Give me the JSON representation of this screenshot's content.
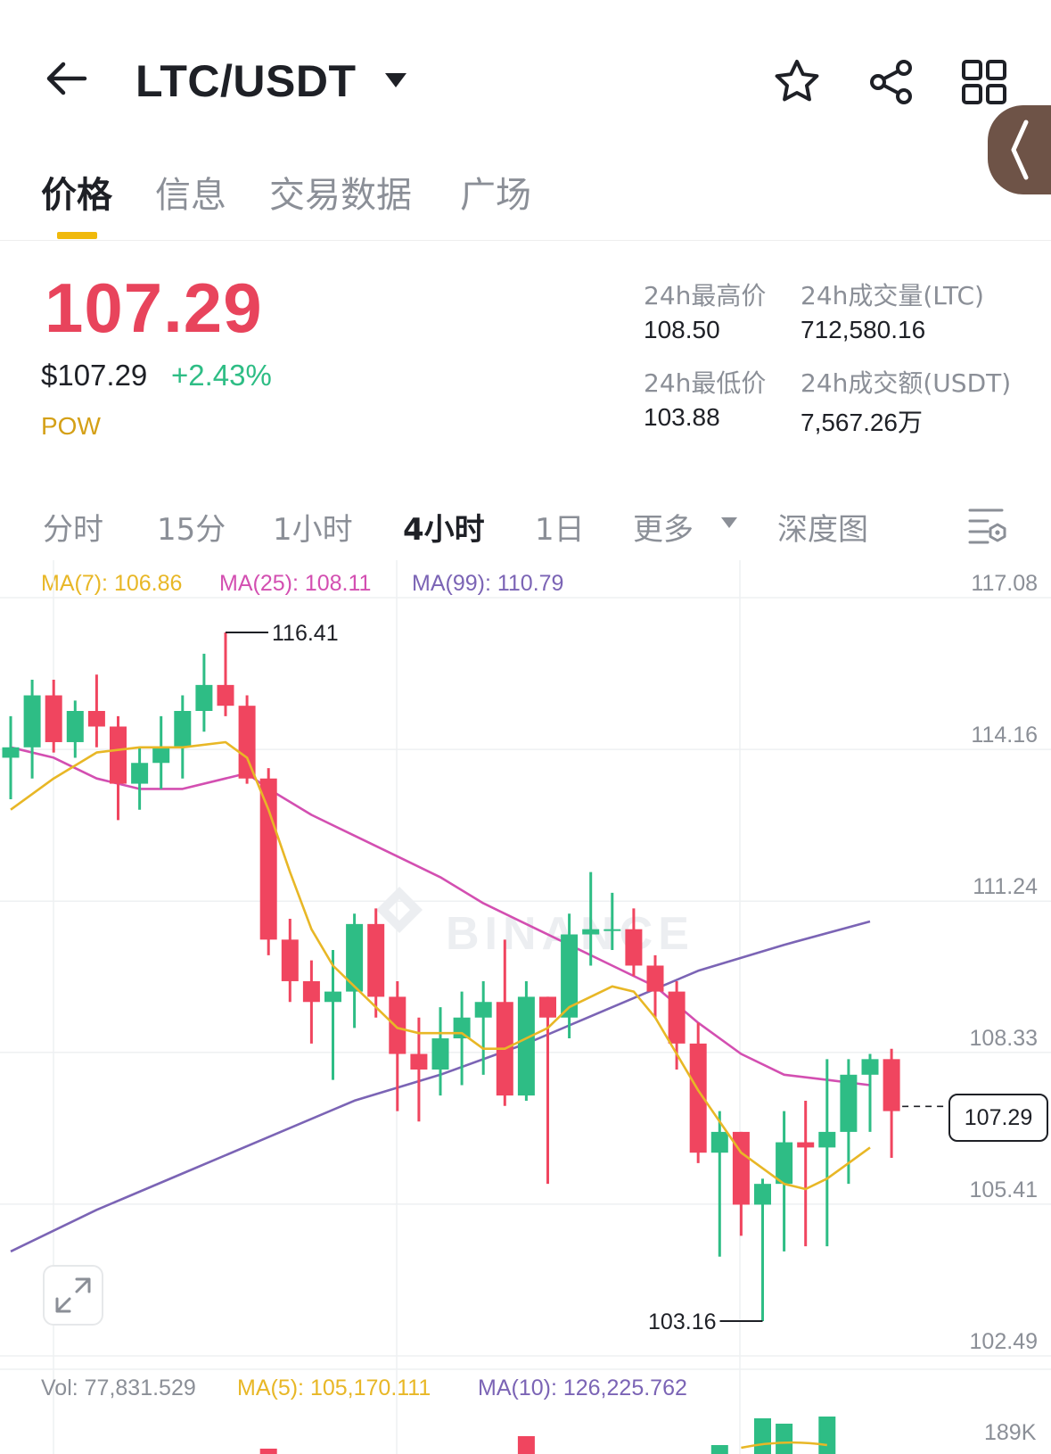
{
  "header": {
    "pair": "LTC/USDT"
  },
  "tabs": [
    {
      "label": "价格",
      "active": true
    },
    {
      "label": "信息",
      "active": false
    },
    {
      "label": "交易数据",
      "active": false
    },
    {
      "label": "广场",
      "active": false
    }
  ],
  "ticker": {
    "last_price": "107.29",
    "usd_price": "$107.29",
    "change": "+2.43%",
    "tag": "POW",
    "high_label": "24h最高价",
    "high_value": "108.50",
    "low_label": "24h最低价",
    "low_value": "103.88",
    "vol_label": "24h成交量(LTC)",
    "vol_value": "712,580.16",
    "amount_label": "24h成交额(USDT)",
    "amount_value": "7,567.26万"
  },
  "intervals": [
    {
      "label": "分时",
      "active": false
    },
    {
      "label": "15分",
      "active": false
    },
    {
      "label": "1小时",
      "active": false
    },
    {
      "label": "4小时",
      "active": true
    },
    {
      "label": "1日",
      "active": false
    },
    {
      "label": "更多",
      "active": false
    },
    {
      "label": "深度图",
      "active": false
    }
  ],
  "indicators": {
    "ma7": "MA(7): 106.86",
    "ma25": "MA(25): 108.11",
    "ma99": "MA(99): 110.79"
  },
  "volume": {
    "vol": "Vol: 77,831.529",
    "ma5": "MA(5): 105,170.111",
    "ma10": "MA(10): 126,225.762",
    "axis_label": "189K"
  },
  "colors": {
    "up": "#2ebd85",
    "down": "#f0455f",
    "ma7": "#e8b726",
    "ma25": "#d34fb1",
    "ma99": "#7b64b5",
    "accent": "#f0b90b"
  },
  "watermark": "BINANCE",
  "chart_data": {
    "type": "candlestick",
    "y_ticks": [
      "117.08",
      "114.16",
      "111.24",
      "108.33",
      "105.41",
      "102.49"
    ],
    "ylim": [
      102.49,
      117.08
    ],
    "last_price_label": "107.29",
    "last_price": 107.29,
    "max_label": "116.41",
    "max": 116.41,
    "min_label": "103.16",
    "min": 103.16,
    "candles": [
      {
        "o": 114.0,
        "h": 114.8,
        "l": 113.2,
        "c": 114.2
      },
      {
        "o": 114.2,
        "h": 115.5,
        "l": 113.6,
        "c": 115.2
      },
      {
        "o": 115.2,
        "h": 115.5,
        "l": 114.1,
        "c": 114.3
      },
      {
        "o": 114.3,
        "h": 115.1,
        "l": 114.0,
        "c": 114.9
      },
      {
        "o": 114.9,
        "h": 115.6,
        "l": 114.2,
        "c": 114.6
      },
      {
        "o": 114.6,
        "h": 114.8,
        "l": 112.8,
        "c": 113.5
      },
      {
        "o": 113.5,
        "h": 114.2,
        "l": 113.0,
        "c": 113.9
      },
      {
        "o": 113.9,
        "h": 114.8,
        "l": 113.4,
        "c": 114.2
      },
      {
        "o": 114.2,
        "h": 115.2,
        "l": 113.6,
        "c": 114.9
      },
      {
        "o": 114.9,
        "h": 116.0,
        "l": 114.5,
        "c": 115.4
      },
      {
        "o": 115.4,
        "h": 116.41,
        "l": 114.8,
        "c": 115.0
      },
      {
        "o": 115.0,
        "h": 115.2,
        "l": 113.5,
        "c": 113.6
      },
      {
        "o": 113.6,
        "h": 113.8,
        "l": 110.2,
        "c": 110.5
      },
      {
        "o": 110.5,
        "h": 110.9,
        "l": 109.3,
        "c": 109.7
      },
      {
        "o": 109.7,
        "h": 110.1,
        "l": 108.5,
        "c": 109.3
      },
      {
        "o": 109.3,
        "h": 110.3,
        "l": 107.8,
        "c": 109.5
      },
      {
        "o": 109.5,
        "h": 111.0,
        "l": 108.8,
        "c": 110.8
      },
      {
        "o": 110.8,
        "h": 111.1,
        "l": 109.0,
        "c": 109.4
      },
      {
        "o": 109.4,
        "h": 109.7,
        "l": 107.2,
        "c": 108.3
      },
      {
        "o": 108.3,
        "h": 109.0,
        "l": 107.0,
        "c": 108.0
      },
      {
        "o": 108.0,
        "h": 109.2,
        "l": 107.5,
        "c": 108.6
      },
      {
        "o": 108.6,
        "h": 109.5,
        "l": 107.7,
        "c": 109.0
      },
      {
        "o": 109.0,
        "h": 109.7,
        "l": 107.9,
        "c": 109.3
      },
      {
        "o": 109.3,
        "h": 110.5,
        "l": 107.3,
        "c": 107.5
      },
      {
        "o": 107.5,
        "h": 109.7,
        "l": 107.4,
        "c": 109.4
      },
      {
        "o": 109.4,
        "h": 109.4,
        "l": 105.8,
        "c": 109.0
      },
      {
        "o": 109.0,
        "h": 111.0,
        "l": 108.6,
        "c": 110.6
      },
      {
        "o": 110.6,
        "h": 111.8,
        "l": 110.0,
        "c": 110.7
      },
      {
        "o": 110.7,
        "h": 111.4,
        "l": 110.3,
        "c": 110.7
      },
      {
        "o": 110.7,
        "h": 111.1,
        "l": 109.8,
        "c": 110.0
      },
      {
        "o": 110.0,
        "h": 110.2,
        "l": 109.0,
        "c": 109.5
      },
      {
        "o": 109.5,
        "h": 109.7,
        "l": 108.0,
        "c": 108.5
      },
      {
        "o": 108.5,
        "h": 108.9,
        "l": 106.2,
        "c": 106.4
      },
      {
        "o": 106.4,
        "h": 107.2,
        "l": 104.4,
        "c": 106.8
      },
      {
        "o": 106.8,
        "h": 106.8,
        "l": 104.8,
        "c": 105.4
      },
      {
        "o": 105.4,
        "h": 105.9,
        "l": 103.16,
        "c": 105.8
      },
      {
        "o": 105.8,
        "h": 107.2,
        "l": 104.5,
        "c": 106.6
      },
      {
        "o": 106.6,
        "h": 107.4,
        "l": 104.6,
        "c": 106.5
      },
      {
        "o": 106.5,
        "h": 108.2,
        "l": 104.6,
        "c": 106.8
      },
      {
        "o": 106.8,
        "h": 108.2,
        "l": 105.8,
        "c": 107.9
      },
      {
        "o": 107.9,
        "h": 108.3,
        "l": 106.8,
        "c": 108.2
      },
      {
        "o": 108.2,
        "h": 108.4,
        "l": 106.3,
        "c": 107.2
      }
    ],
    "ma7_points": [
      [
        0,
        113.0
      ],
      [
        2,
        113.6
      ],
      [
        4,
        114.1
      ],
      [
        6,
        114.2
      ],
      [
        8,
        114.2
      ],
      [
        10,
        114.3
      ],
      [
        11,
        114.0
      ],
      [
        12,
        113.0
      ],
      [
        13,
        111.8
      ],
      [
        14,
        110.7
      ],
      [
        15,
        110.0
      ],
      [
        16,
        109.6
      ],
      [
        17,
        109.2
      ],
      [
        18,
        108.8
      ],
      [
        19,
        108.7
      ],
      [
        20,
        108.7
      ],
      [
        21,
        108.7
      ],
      [
        22,
        108.4
      ],
      [
        23,
        108.4
      ],
      [
        24,
        108.6
      ],
      [
        25,
        108.8
      ],
      [
        26,
        109.2
      ],
      [
        27,
        109.4
      ],
      [
        28,
        109.6
      ],
      [
        29,
        109.5
      ],
      [
        30,
        109.0
      ],
      [
        31,
        108.3
      ],
      [
        32,
        107.6
      ],
      [
        33,
        107.0
      ],
      [
        34,
        106.4
      ],
      [
        35,
        106.1
      ],
      [
        36,
        105.8
      ],
      [
        37,
        105.7
      ],
      [
        38,
        105.9
      ],
      [
        39,
        106.2
      ],
      [
        40,
        106.5
      ]
    ],
    "ma25_points": [
      [
        0,
        114.2
      ],
      [
        2,
        114.0
      ],
      [
        4,
        113.6
      ],
      [
        6,
        113.4
      ],
      [
        8,
        113.4
      ],
      [
        10,
        113.6
      ],
      [
        11,
        113.7
      ],
      [
        12,
        113.4
      ],
      [
        14,
        112.9
      ],
      [
        16,
        112.5
      ],
      [
        18,
        112.1
      ],
      [
        20,
        111.7
      ],
      [
        22,
        111.2
      ],
      [
        24,
        110.8
      ],
      [
        26,
        110.4
      ],
      [
        28,
        110.0
      ],
      [
        30,
        109.6
      ],
      [
        32,
        108.9
      ],
      [
        34,
        108.3
      ],
      [
        36,
        107.9
      ],
      [
        38,
        107.8
      ],
      [
        40,
        107.7
      ]
    ],
    "ma99_points": [
      [
        0,
        104.5
      ],
      [
        4,
        105.3
      ],
      [
        8,
        106.0
      ],
      [
        12,
        106.7
      ],
      [
        16,
        107.4
      ],
      [
        20,
        107.9
      ],
      [
        24,
        108.5
      ],
      [
        28,
        109.2
      ],
      [
        32,
        109.9
      ],
      [
        36,
        110.4
      ],
      [
        40,
        110.85
      ]
    ]
  }
}
